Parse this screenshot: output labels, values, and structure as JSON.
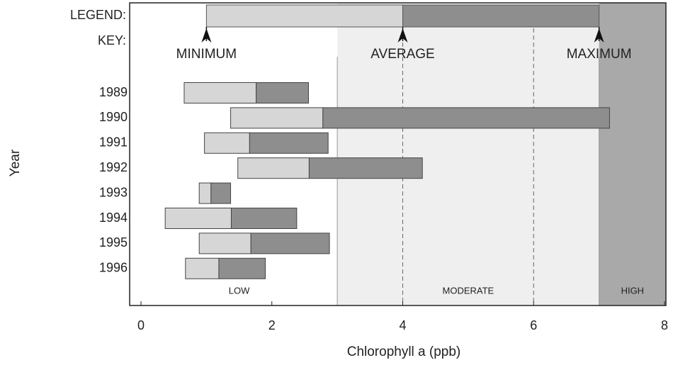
{
  "chart_data": {
    "type": "range-bar",
    "x_label": "Chlorophyll a (ppb)",
    "y_label": "Year",
    "categories": [
      "1989",
      "1990",
      "1991",
      "1992",
      "1993",
      "1994",
      "1995",
      "1996"
    ],
    "series": [
      {
        "name": "MINIMUM",
        "values": [
          0.66,
          1.37,
          0.97,
          1.48,
          0.89,
          0.37,
          0.89,
          0.68
        ]
      },
      {
        "name": "AVERAGE",
        "values": [
          1.76,
          2.78,
          1.66,
          2.57,
          1.07,
          1.38,
          1.68,
          1.19
        ]
      },
      {
        "name": "MAXIMUM",
        "values": [
          2.56,
          7.16,
          2.86,
          4.3,
          1.37,
          2.38,
          2.88,
          1.9
        ]
      }
    ],
    "colors": [
      "#d6d6d6",
      "#8e8e8e"
    ],
    "xlim": [
      0,
      8
    ],
    "xticks": [
      0,
      2,
      4,
      6,
      8
    ],
    "zones": [
      {
        "label": "LOW",
        "range": [
          0,
          3
        ],
        "color": "#ffffff"
      },
      {
        "label": "MODERATE",
        "range": [
          3,
          7
        ],
        "color": "#efefef"
      },
      {
        "label": "HIGH",
        "range": [
          7,
          8
        ],
        "color": "#a9a9a9"
      }
    ],
    "reference_lines": [
      4,
      6
    ],
    "legend": {
      "title": "LEGEND:",
      "key": "KEY:",
      "values": [
        1,
        4,
        7
      ]
    }
  }
}
